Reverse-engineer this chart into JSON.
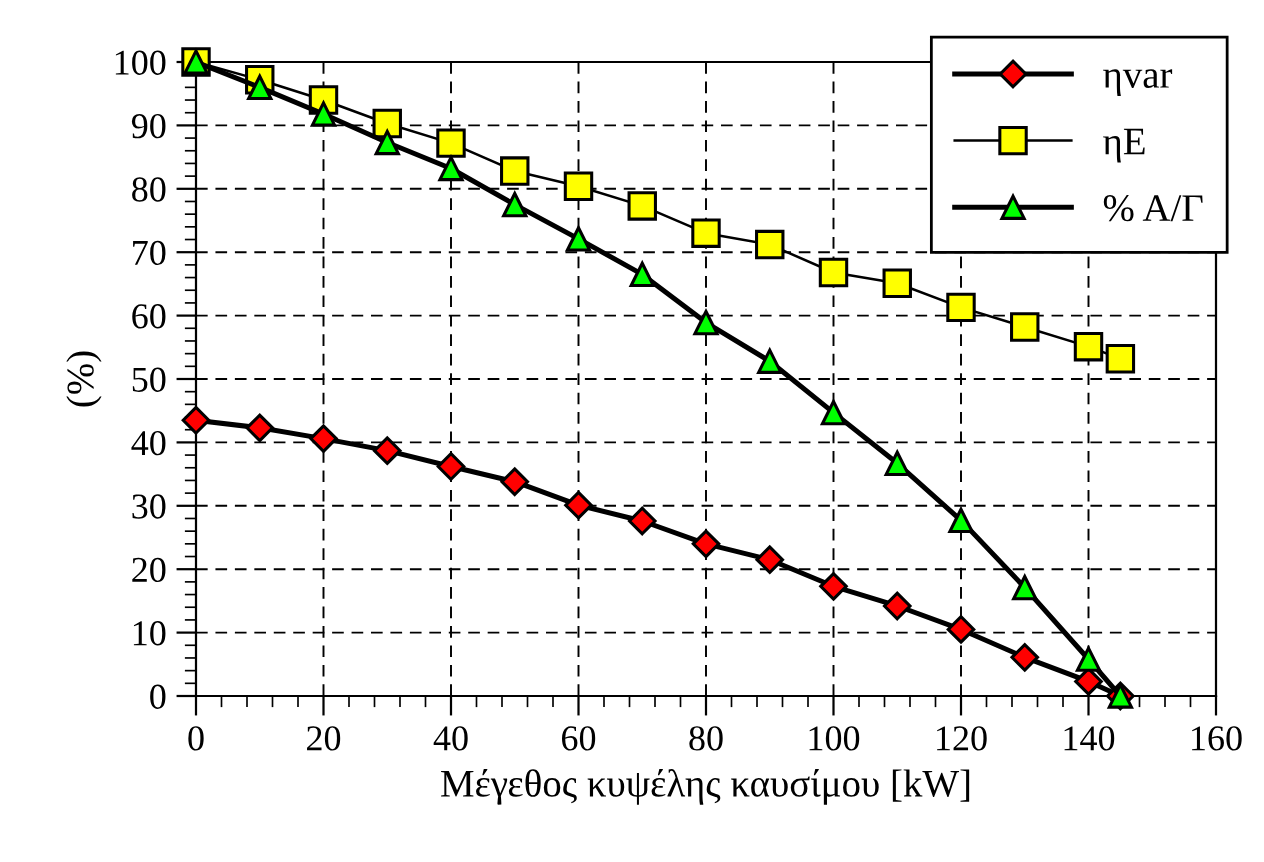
{
  "chart_data": {
    "type": "line",
    "xlabel": "Μέγεθος κυψέλης καυσίμου [kW]",
    "ylabel": "(%)",
    "x": [
      0,
      10,
      20,
      30,
      40,
      50,
      60,
      70,
      80,
      90,
      100,
      110,
      120,
      130,
      140,
      145
    ],
    "series": [
      {
        "name": "ηvar",
        "color": "#ff0000",
        "marker": "diamond",
        "values": [
          43.5,
          42.3,
          40.6,
          38.7,
          36.2,
          33.8,
          30.1,
          27.6,
          24,
          21.5,
          17.3,
          14.2,
          10.5,
          6.1,
          2.3,
          0
        ]
      },
      {
        "name": "ηE",
        "color": "#ffff00",
        "marker": "square",
        "values": [
          100,
          97.2,
          94,
          90.3,
          87.2,
          82.8,
          80.4,
          77.3,
          73,
          71.2,
          66.8,
          65.1,
          61.3,
          58.2,
          55.1,
          53.2
        ]
      },
      {
        "name": "% Α/Γ",
        "color": "#00ff00",
        "marker": "triangle",
        "values": [
          100,
          96,
          91.8,
          87.3,
          83.2,
          77.5,
          72.1,
          66.5,
          58.9,
          52.8,
          44.7,
          36.7,
          27.7,
          17.1,
          5.8,
          0
        ]
      }
    ],
    "xlim": [
      0,
      160
    ],
    "xticks": [
      0,
      20,
      40,
      60,
      80,
      100,
      120,
      140,
      160
    ],
    "ylim": [
      0,
      100
    ],
    "yticks": [
      0,
      10,
      20,
      30,
      40,
      50,
      60,
      70,
      80,
      90,
      100
    ],
    "grid": true,
    "legend": "top right",
    "line_style": "solid"
  }
}
